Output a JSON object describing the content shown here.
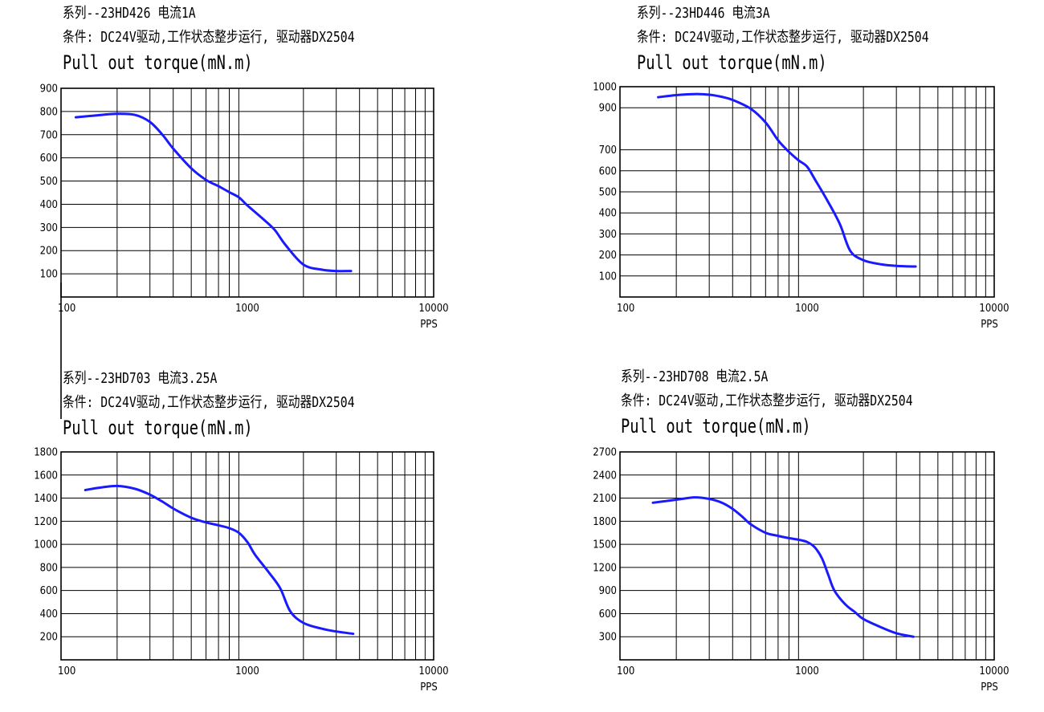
{
  "chart_data": [
    {
      "type": "line",
      "title": "系列--23HD426 电流1A",
      "subtitle": "条件: DC24V驱动,工作状态整步运行, 驱动器DX2504",
      "ylabel": "Pull out torque(mN.m)",
      "xlabel": "PPS",
      "x_scale": "log",
      "xlim": [
        100,
        10000
      ],
      "x_ticks": [
        100,
        1000,
        10000
      ],
      "ylim": [
        0,
        900
      ],
      "y_ticks": [
        100,
        200,
        300,
        400,
        500,
        600,
        700,
        800,
        900
      ],
      "grid": true,
      "line_color": "#1a1aff",
      "series": [
        {
          "x": [
            120,
            150,
            200,
            250,
            300,
            350,
            400,
            500,
            600,
            700,
            800,
            900,
            1000,
            1200,
            1400,
            1600,
            2000,
            2500,
            3000,
            3600
          ],
          "y": [
            775,
            782,
            790,
            785,
            755,
            700,
            640,
            555,
            505,
            478,
            452,
            430,
            395,
            340,
            290,
            225,
            140,
            118,
            112,
            112
          ]
        }
      ]
    },
    {
      "type": "line",
      "title": "系列--23HD446 电流3A",
      "subtitle": "条件: DC24V驱动,工作状态整步运行, 驱动器DX2504",
      "ylabel": "Pull out torque(mN.m)",
      "xlabel": "PPS",
      "x_scale": "log",
      "xlim": [
        100,
        10000
      ],
      "x_ticks": [
        100,
        1000,
        10000
      ],
      "ylim": [
        0,
        1000
      ],
      "y_ticks": [
        100,
        200,
        300,
        400,
        500,
        600,
        700,
        900,
        1000
      ],
      "grid": true,
      "line_color": "#1a1aff",
      "series": [
        {
          "x": [
            160,
            200,
            250,
            300,
            350,
            400,
            500,
            600,
            700,
            800,
            900,
            1000,
            1100,
            1300,
            1500,
            1700,
            2000,
            2500,
            3000,
            3800
          ],
          "y": [
            950,
            960,
            965,
            962,
            952,
            937,
            895,
            830,
            745,
            690,
            650,
            620,
            560,
            450,
            345,
            220,
            175,
            155,
            148,
            145
          ]
        }
      ]
    },
    {
      "type": "line",
      "title": "系列--23HD703 电流3.25A",
      "subtitle": "条件: DC24V驱动,工作状态整步运行, 驱动器DX2504",
      "ylabel": "Pull out torque(mN.m)",
      "xlabel": "PPS",
      "x_scale": "log",
      "xlim": [
        100,
        10000
      ],
      "x_ticks": [
        100,
        1000,
        10000
      ],
      "ylim": [
        0,
        1800
      ],
      "y_ticks": [
        200,
        400,
        600,
        800,
        1000,
        1200,
        1400,
        1600,
        1800
      ],
      "grid": true,
      "line_color": "#1a1aff",
      "series": [
        {
          "x": [
            135,
            160,
            200,
            250,
            300,
            350,
            400,
            500,
            600,
            700,
            800,
            900,
            1000,
            1100,
            1300,
            1500,
            1700,
            2000,
            2500,
            3000,
            3700
          ],
          "y": [
            1470,
            1490,
            1505,
            1480,
            1430,
            1370,
            1310,
            1230,
            1190,
            1165,
            1140,
            1100,
            1020,
            910,
            760,
            620,
            420,
            320,
            270,
            245,
            225
          ]
        }
      ]
    },
    {
      "type": "line",
      "title": "系列--23HD708 电流2.5A",
      "subtitle": "条件: DC24V驱动,工作状态整步运行, 驱动器DX2504",
      "ylabel": "Pull out torque(mN.m)",
      "xlabel": "PPS",
      "x_scale": "log",
      "xlim": [
        100,
        10000
      ],
      "x_ticks": [
        100,
        1000,
        10000
      ],
      "ylim": [
        0,
        2700
      ],
      "y_ticks": [
        300,
        600,
        900,
        1200,
        1500,
        1800,
        2100,
        2400,
        2700
      ],
      "grid": true,
      "line_color": "#1a1aff",
      "series": [
        {
          "x": [
            150,
            200,
            250,
            300,
            350,
            400,
            450,
            500,
            600,
            700,
            800,
            900,
            1000,
            1100,
            1200,
            1300,
            1400,
            1600,
            1800,
            2000,
            2500,
            3000,
            3700
          ],
          "y": [
            2040,
            2080,
            2110,
            2090,
            2040,
            1960,
            1860,
            1760,
            1650,
            1610,
            1580,
            1560,
            1530,
            1460,
            1320,
            1100,
            900,
            720,
            620,
            530,
            420,
            345,
            300
          ]
        }
      ]
    }
  ]
}
